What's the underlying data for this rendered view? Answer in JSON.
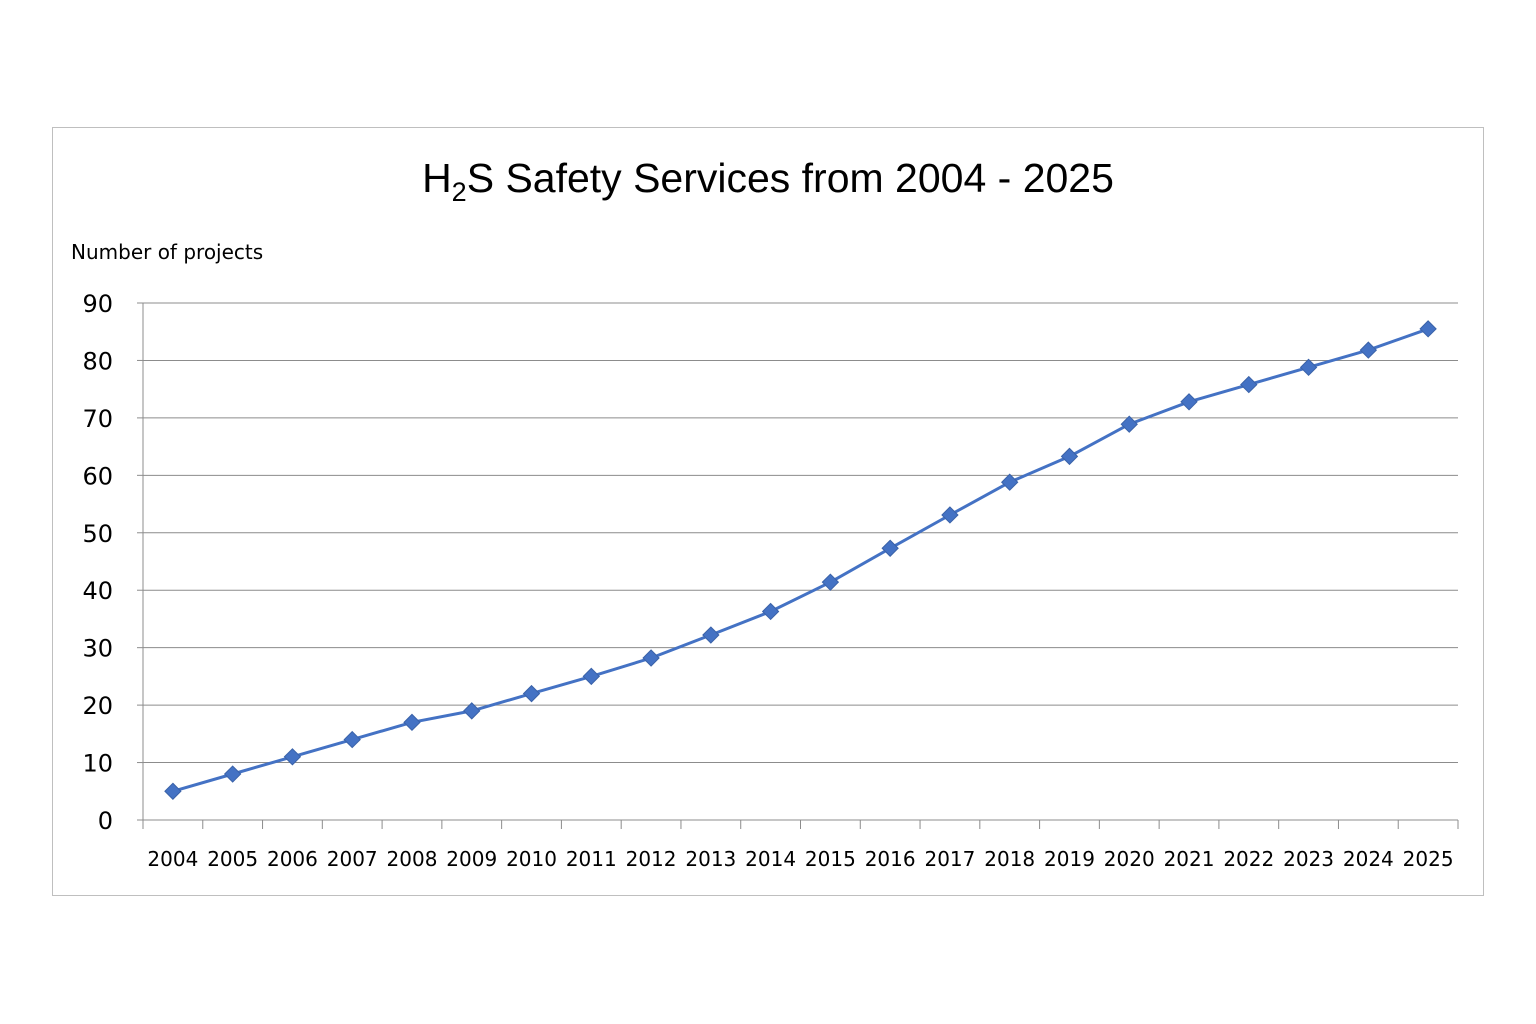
{
  "chart_data": {
    "type": "line",
    "title": {
      "prefix": "H",
      "subscript": "2",
      "suffix": "S Safety Services from 2004 - 2025"
    },
    "xlabel": "",
    "ylabel": "Number of projects",
    "ylim": [
      0,
      90
    ],
    "yticks": [
      "0",
      "10",
      "20",
      "30",
      "40",
      "50",
      "60",
      "70",
      "80",
      "90"
    ],
    "categories": [
      "2004",
      "2005",
      "2006",
      "2007",
      "2008",
      "2009",
      "2010",
      "2011",
      "2012",
      "2013",
      "2014",
      "2015",
      "2016",
      "2017",
      "2018",
      "2019",
      "2020",
      "2021",
      "2022",
      "2023",
      "2024",
      "2025"
    ],
    "series": [
      {
        "values": [
          5,
          8,
          11,
          14,
          17,
          19,
          22,
          25,
          28.2,
          32.2,
          36.3,
          41.4,
          47.3,
          53.1,
          58.8,
          63.3,
          68.9,
          72.8,
          75.8,
          78.8,
          81.8,
          85.5
        ]
      }
    ],
    "grid": true,
    "marker": "diamond",
    "line_color": "#4472c4"
  }
}
